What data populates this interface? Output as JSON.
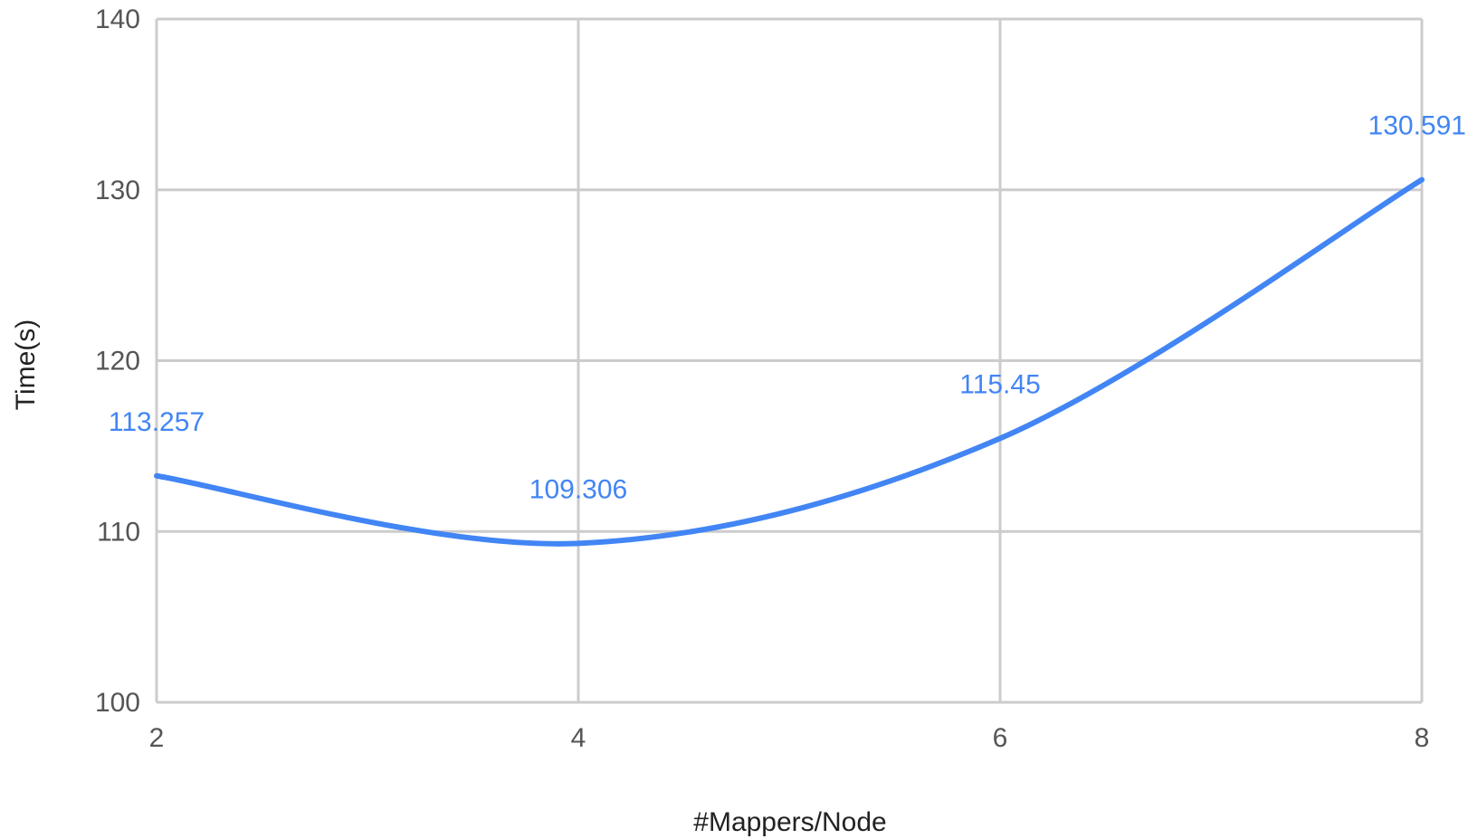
{
  "chart_data": {
    "type": "line",
    "title": "",
    "xlabel": "#Mappers/Node",
    "ylabel": "Time(s)",
    "x": [
      2,
      4,
      6,
      8
    ],
    "xticks": [
      2,
      4,
      6,
      8
    ],
    "yticks": [
      100,
      110,
      120,
      130,
      140
    ],
    "xlim": [
      2,
      8
    ],
    "ylim": [
      100,
      140
    ],
    "grid": true,
    "smooth": true,
    "series": [
      {
        "values": [
          113.257,
          109.306,
          115.45,
          130.591
        ],
        "labels": [
          "113.257",
          "109.306",
          "115.45",
          "130.591"
        ],
        "color": "#4285f4"
      }
    ]
  }
}
